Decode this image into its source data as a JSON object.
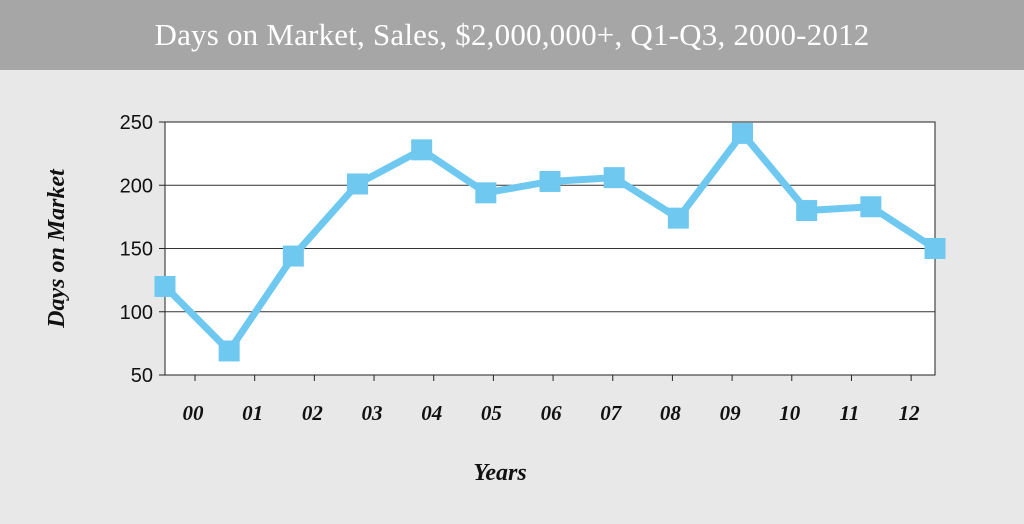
{
  "title": "Days on Market, Sales, $2,000,000+, Q1-Q3, 2000-2012",
  "colors": {
    "title_bar": "#a6a6a6",
    "background": "#e8e8e8",
    "plot_area": "#ffffff",
    "series_line": "#6ec8f0",
    "marker": "#6ec8f0"
  },
  "chart_data": {
    "type": "line",
    "title": "Days on Market, Sales, $2,000,000+, Q1-Q3, 2000-2012",
    "xlabel": "Years",
    "ylabel": "Days on Market",
    "categories": [
      "00",
      "01",
      "02",
      "03",
      "04",
      "05",
      "06",
      "07",
      "08",
      "09",
      "10",
      "11",
      "12"
    ],
    "series": [
      {
        "values": [
          120,
          69,
          144,
          201,
          228,
          194,
          203,
          206,
          174,
          241,
          180,
          183,
          150
        ]
      }
    ],
    "ylim": [
      50,
      250
    ],
    "yticks": [
      50,
      100,
      150,
      200,
      250
    ],
    "grid": true,
    "legend": "none"
  }
}
